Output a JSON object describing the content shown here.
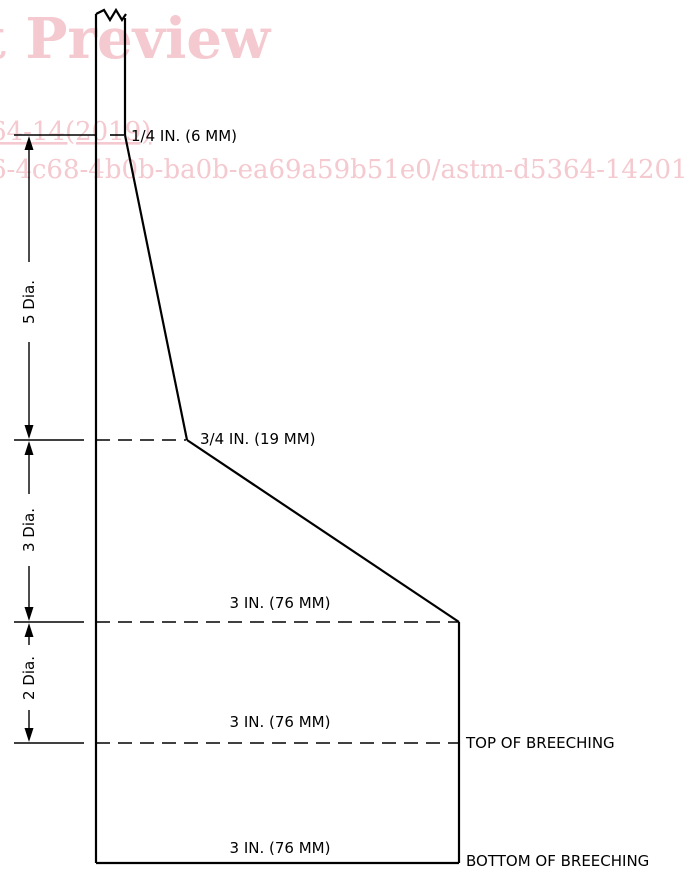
{
  "watermark": {
    "title": "t Preview",
    "line1": "64-14(2019)",
    "line2": "6-4c68-4b0b-ba0b-ea69a59b51e0/astm-d5364-142019",
    "color": "#f4c9cf"
  },
  "labels": {
    "top_thickness": "1/4 IN. (6 MM)",
    "mid_thickness": "3/4 IN. (19 MM)",
    "base_thickness_1": "3 IN. (76 MM)",
    "base_thickness_2": "3 IN. (76 MM)",
    "base_thickness_3": "3 IN. (76 MM)",
    "top_of_breeching": "TOP OF BREECHING",
    "bottom_of_breeching": "BOTTOM OF BREECHING"
  },
  "dimensions": {
    "upper": "5 Dia.",
    "middle": "3 Dia.",
    "lower": "2 Dia."
  }
}
